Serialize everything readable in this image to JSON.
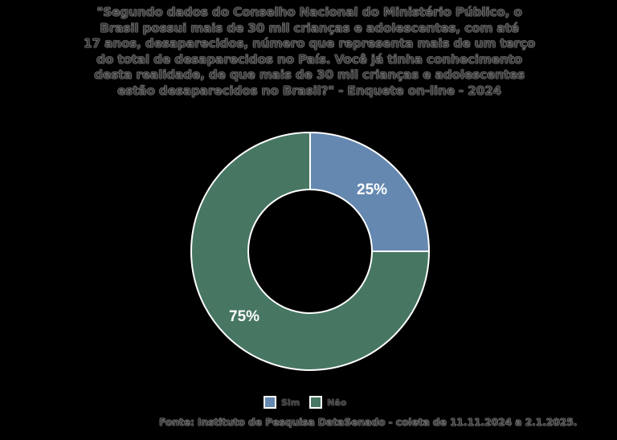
{
  "title": "\"Segundo dados do Conselho Nacional do Ministério Público, o Brasil possui mais de 30 mil crianças e adolescentes, com até 17 anos, desaparecidos, número que representa mais de um terço do total de desaparecidos no País. Você já tinha conhecimento desta realidade, de que mais de 30 mil crianças e adolescentes estão desaparecidos no Brasil?\" - Enquete on-line - 2024",
  "title_lines": [
    "\"Segundo dados do Conselho Nacional do Ministério Público, o",
    "Brasil possui mais de 30 mil crianças e adolescentes, com até",
    "17 anos, desaparecidos, número que representa mais de um terço",
    "do total de desaparecidos no País. Você já tinha conhecimento",
    "desta realidade, de que mais de 30 mil crianças e adolescentes",
    "estão desaparecidos no Brasil?\" - Enquete on-line - 2024"
  ],
  "legend": [
    {
      "label": "Sim",
      "color": "#6588B0"
    },
    {
      "label": "Não",
      "color": "#477762"
    }
  ],
  "slice_labels": {
    "sim": "25%",
    "nao": "75%"
  },
  "source": "Fonte: Instituto de Pesquisa DataSenado - coleta de 11.11.2024 a 2.1.2025.",
  "chart_data": {
    "type": "pie",
    "variant": "donut",
    "title": "\"Segundo dados do Conselho Nacional do Ministério Público, o Brasil possui mais de 30 mil crianças e adolescentes, com até 17 anos, desaparecidos, número que representa mais de um terço do total de desaparecidos no País. Você já tinha conhecimento desta realidade, de que mais de 30 mil crianças e adolescentes estão desaparecidos no Brasil?\" - Enquete on-line - 2024",
    "categories": [
      "Sim",
      "Não"
    ],
    "values": [
      25,
      75
    ],
    "unit": "%",
    "colors": [
      "#6588B0",
      "#477762"
    ],
    "legend_position": "bottom",
    "source": "Fonte: Instituto de Pesquisa DataSenado - coleta de 11.11.2024 a 2.1.2025."
  }
}
